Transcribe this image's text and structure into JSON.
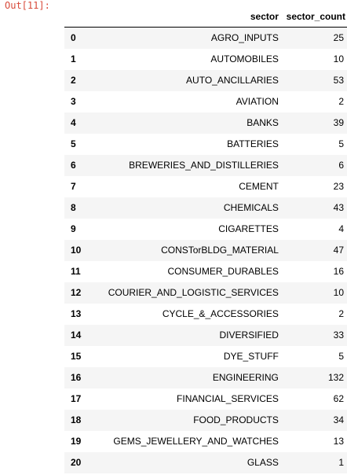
{
  "prompt": {
    "label": "Out[11]:"
  },
  "dataframe": {
    "columns": [
      "sector",
      "sector_count"
    ],
    "rows": [
      {
        "index": "0",
        "sector": "AGRO_INPUTS",
        "count": "25"
      },
      {
        "index": "1",
        "sector": "AUTOMOBILES",
        "count": "10"
      },
      {
        "index": "2",
        "sector": "AUTO_ANCILLARIES",
        "count": "53"
      },
      {
        "index": "3",
        "sector": "AVIATION",
        "count": "2"
      },
      {
        "index": "4",
        "sector": "BANKS",
        "count": "39"
      },
      {
        "index": "5",
        "sector": "BATTERIES",
        "count": "5"
      },
      {
        "index": "6",
        "sector": "BREWERIES_AND_DISTILLERIES",
        "count": "6"
      },
      {
        "index": "7",
        "sector": "CEMENT",
        "count": "23"
      },
      {
        "index": "8",
        "sector": "CHEMICALS",
        "count": "43"
      },
      {
        "index": "9",
        "sector": "CIGARETTES",
        "count": "4"
      },
      {
        "index": "10",
        "sector": "CONSTorBLDG_MATERIAL",
        "count": "47"
      },
      {
        "index": "11",
        "sector": "CONSUMER_DURABLES",
        "count": "16"
      },
      {
        "index": "12",
        "sector": "COURIER_AND_LOGISTIC_SERVICES",
        "count": "10"
      },
      {
        "index": "13",
        "sector": "CYCLE_&_ACCESSORIES",
        "count": "2"
      },
      {
        "index": "14",
        "sector": "DIVERSIFIED",
        "count": "33"
      },
      {
        "index": "15",
        "sector": "DYE_STUFF",
        "count": "5"
      },
      {
        "index": "16",
        "sector": "ENGINEERING",
        "count": "132"
      },
      {
        "index": "17",
        "sector": "FINANCIAL_SERVICES",
        "count": "62"
      },
      {
        "index": "18",
        "sector": "FOOD_PRODUCTS",
        "count": "34"
      },
      {
        "index": "19",
        "sector": "GEMS_JEWELLERY_AND_WATCHES",
        "count": "13"
      },
      {
        "index": "20",
        "sector": "GLASS",
        "count": "1"
      }
    ]
  }
}
